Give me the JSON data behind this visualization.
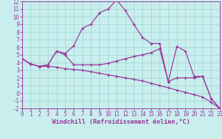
{
  "xlabel": "Windchill (Refroidissement éolien,°C)",
  "background_color": "#c8eeee",
  "grid_color": "#a8d8d8",
  "line_color": "#993399",
  "xlim": [
    0,
    23
  ],
  "ylim": [
    -2,
    12
  ],
  "xticks": [
    0,
    1,
    2,
    3,
    4,
    5,
    6,
    7,
    8,
    9,
    10,
    11,
    12,
    13,
    14,
    15,
    16,
    17,
    18,
    19,
    20,
    21,
    22,
    23
  ],
  "yticks": [
    -2,
    -1,
    0,
    1,
    2,
    3,
    4,
    5,
    6,
    7,
    8,
    9,
    10,
    11,
    12
  ],
  "line1_x": [
    0,
    1,
    2,
    3,
    4,
    5,
    6,
    7,
    8,
    9,
    10,
    11,
    12,
    13,
    14,
    15,
    16,
    17,
    18,
    19,
    20,
    21,
    22,
    23
  ],
  "line1_y": [
    4.5,
    3.8,
    3.5,
    3.7,
    5.5,
    5.2,
    6.2,
    8.5,
    9.0,
    10.5,
    11.0,
    12.2,
    10.8,
    9.0,
    7.3,
    6.5,
    6.5,
    1.5,
    2.0,
    2.0,
    2.0,
    2.2,
    -0.7,
    -2.0
  ],
  "line2_x": [
    0,
    1,
    2,
    3,
    4,
    5,
    6,
    7,
    8,
    9,
    10,
    11,
    12,
    13,
    14,
    15,
    16,
    17,
    18,
    19,
    20,
    21,
    22,
    23
  ],
  "line2_y": [
    4.5,
    3.8,
    3.5,
    3.7,
    5.5,
    5.0,
    3.7,
    3.7,
    3.7,
    3.7,
    3.9,
    4.2,
    4.5,
    4.8,
    5.0,
    5.3,
    5.8,
    1.5,
    6.1,
    5.5,
    2.2,
    2.2,
    -0.7,
    -2.0
  ],
  "line3_x": [
    0,
    1,
    2,
    3,
    4,
    5,
    6,
    7,
    8,
    9,
    10,
    11,
    12,
    13,
    14,
    15,
    16,
    17,
    18,
    19,
    20,
    21,
    22,
    23
  ],
  "line3_y": [
    4.5,
    3.8,
    3.5,
    3.5,
    3.4,
    3.2,
    3.1,
    3.0,
    2.8,
    2.6,
    2.4,
    2.2,
    2.0,
    1.8,
    1.6,
    1.3,
    1.0,
    0.7,
    0.4,
    0.1,
    -0.2,
    -0.5,
    -1.2,
    -2.0
  ],
  "tick_fontsize": 5.5,
  "label_fontsize": 6.5
}
